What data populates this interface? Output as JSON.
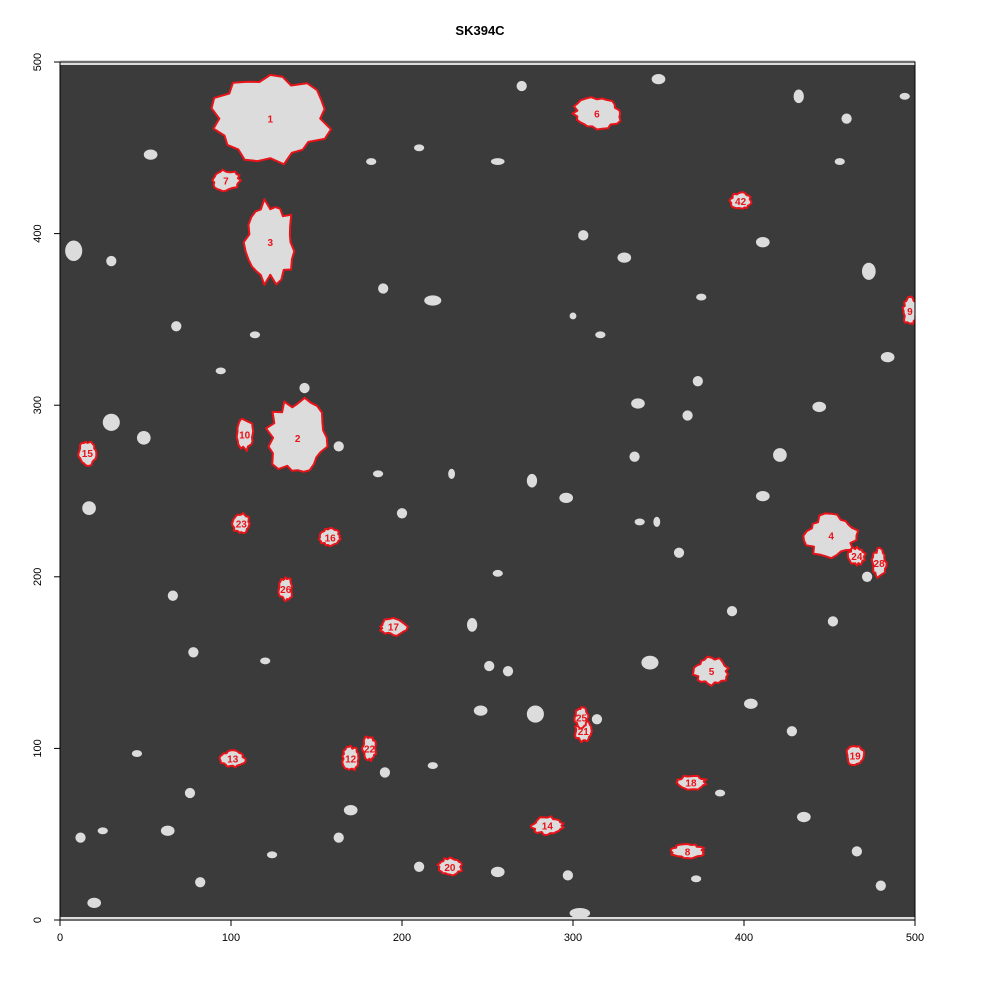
{
  "chart_data": {
    "type": "scatter",
    "title": "SK394C",
    "xlabel": "",
    "ylabel": "",
    "xlim": [
      0,
      500
    ],
    "ylim": [
      0,
      500
    ],
    "x_ticks": [
      0,
      100,
      200,
      300,
      400,
      500
    ],
    "y_ticks": [
      0,
      100,
      200,
      300,
      400,
      500
    ],
    "grid": false,
    "colors": {
      "background": "#3b3b3b",
      "particle": "#dcdcdc",
      "outline": "#e8141a",
      "label": "#e8141a",
      "frame": "#000000"
    },
    "labeled_regions": [
      {
        "label": "1",
        "x": 123,
        "y": 467,
        "rx": 34,
        "ry": 26
      },
      {
        "label": "2",
        "x": 139,
        "y": 281,
        "rx": 17,
        "ry": 22
      },
      {
        "label": "3",
        "x": 123,
        "y": 395,
        "rx": 14,
        "ry": 23
      },
      {
        "label": "4",
        "x": 451,
        "y": 224,
        "rx": 15,
        "ry": 12
      },
      {
        "label": "5",
        "x": 381,
        "y": 145,
        "rx": 10,
        "ry": 8
      },
      {
        "label": "6",
        "x": 314,
        "y": 470,
        "rx": 14,
        "ry": 9
      },
      {
        "label": "7",
        "x": 97,
        "y": 431,
        "rx": 8,
        "ry": 6
      },
      {
        "label": "8",
        "x": 367,
        "y": 40,
        "rx": 10,
        "ry": 4
      },
      {
        "label": "9",
        "x": 497,
        "y": 355,
        "rx": 4,
        "ry": 8
      },
      {
        "label": "10",
        "x": 108,
        "y": 283,
        "rx": 5,
        "ry": 9
      },
      {
        "label": "12",
        "x": 170,
        "y": 94,
        "rx": 5,
        "ry": 7
      },
      {
        "label": "13",
        "x": 101,
        "y": 94,
        "rx": 7,
        "ry": 5
      },
      {
        "label": "14",
        "x": 285,
        "y": 55,
        "rx": 9,
        "ry": 5
      },
      {
        "label": "15",
        "x": 16,
        "y": 272,
        "rx": 5,
        "ry": 7
      },
      {
        "label": "16",
        "x": 158,
        "y": 223,
        "rx": 6,
        "ry": 5
      },
      {
        "label": "17",
        "x": 195,
        "y": 171,
        "rx": 8,
        "ry": 5
      },
      {
        "label": "18",
        "x": 369,
        "y": 80,
        "rx": 9,
        "ry": 4
      },
      {
        "label": "19",
        "x": 465,
        "y": 96,
        "rx": 5,
        "ry": 6
      },
      {
        "label": "20",
        "x": 228,
        "y": 31,
        "rx": 7,
        "ry": 5
      },
      {
        "label": "21",
        "x": 306,
        "y": 110,
        "rx": 5,
        "ry": 6
      },
      {
        "label": "22",
        "x": 181,
        "y": 100,
        "rx": 4,
        "ry": 7
      },
      {
        "label": "23",
        "x": 106,
        "y": 231,
        "rx": 5,
        "ry": 6
      },
      {
        "label": "24",
        "x": 466,
        "y": 212,
        "rx": 5,
        "ry": 5
      },
      {
        "label": "25",
        "x": 305,
        "y": 118,
        "rx": 4,
        "ry": 6
      },
      {
        "label": "26",
        "x": 132,
        "y": 193,
        "rx": 4,
        "ry": 7
      },
      {
        "label": "28",
        "x": 479,
        "y": 208,
        "rx": 4,
        "ry": 8
      },
      {
        "label": "42",
        "x": 398,
        "y": 419,
        "rx": 6,
        "ry": 5
      }
    ],
    "unlabeled_particles": [
      [
        53,
        446,
        4,
        3
      ],
      [
        30,
        384,
        3,
        3
      ],
      [
        8,
        390,
        5,
        6
      ],
      [
        210,
        450,
        3,
        2
      ],
      [
        256,
        442,
        4,
        2
      ],
      [
        182,
        442,
        3,
        2
      ],
      [
        300,
        352,
        2,
        2
      ],
      [
        316,
        341,
        3,
        2
      ],
      [
        373,
        314,
        3,
        3
      ],
      [
        375,
        363,
        3,
        2
      ],
      [
        306,
        399,
        3,
        3
      ],
      [
        330,
        386,
        4,
        3
      ],
      [
        411,
        395,
        4,
        3
      ],
      [
        444,
        299,
        4,
        3
      ],
      [
        484,
        328,
        4,
        3
      ],
      [
        421,
        271,
        4,
        4
      ],
      [
        473,
        378,
        4,
        5
      ],
      [
        472,
        200,
        3,
        3
      ],
      [
        428,
        110,
        3,
        3
      ],
      [
        393,
        180,
        3,
        3
      ],
      [
        452,
        174,
        3,
        3
      ],
      [
        345,
        150,
        5,
        4
      ],
      [
        314,
        117,
        3,
        3
      ],
      [
        278,
        120,
        5,
        5
      ],
      [
        251,
        148,
        3,
        3
      ],
      [
        241,
        172,
        3,
        4
      ],
      [
        200,
        237,
        3,
        3
      ],
      [
        229,
        260,
        2,
        3
      ],
      [
        186,
        260,
        3,
        2
      ],
      [
        163,
        276,
        3,
        3
      ],
      [
        114,
        341,
        3,
        2
      ],
      [
        94,
        320,
        3,
        2
      ],
      [
        68,
        346,
        3,
        3
      ],
      [
        17,
        240,
        4,
        4
      ],
      [
        30,
        290,
        5,
        5
      ],
      [
        49,
        281,
        4,
        4
      ],
      [
        66,
        189,
        3,
        3
      ],
      [
        78,
        156,
        3,
        3
      ],
      [
        45,
        97,
        3,
        2
      ],
      [
        25,
        52,
        3,
        2
      ],
      [
        63,
        52,
        4,
        3
      ],
      [
        76,
        74,
        3,
        3
      ],
      [
        120,
        151,
        3,
        2
      ],
      [
        132,
        192,
        3,
        2
      ],
      [
        193,
        171,
        3,
        3
      ],
      [
        246,
        122,
        4,
        3
      ],
      [
        262,
        145,
        3,
        3
      ],
      [
        339,
        232,
        3,
        2
      ],
      [
        367,
        294,
        3,
        3
      ],
      [
        338,
        301,
        4,
        3
      ],
      [
        404,
        126,
        4,
        3
      ],
      [
        386,
        74,
        3,
        2
      ],
      [
        435,
        60,
        4,
        3
      ],
      [
        466,
        40,
        3,
        3
      ],
      [
        480,
        20,
        3,
        3
      ],
      [
        372,
        24,
        3,
        2
      ],
      [
        304,
        4,
        6,
        3
      ],
      [
        297,
        26,
        3,
        3
      ],
      [
        256,
        28,
        4,
        3
      ],
      [
        210,
        31,
        3,
        3
      ],
      [
        163,
        48,
        3,
        3
      ],
      [
        124,
        38,
        3,
        2
      ],
      [
        82,
        22,
        3,
        3
      ],
      [
        20,
        10,
        4,
        3
      ],
      [
        12,
        48,
        3,
        3
      ],
      [
        170,
        64,
        4,
        3
      ],
      [
        190,
        86,
        3,
        3
      ],
      [
        218,
        90,
        3,
        2
      ],
      [
        336,
        270,
        3,
        3
      ],
      [
        276,
        256,
        3,
        4
      ],
      [
        296,
        246,
        4,
        3
      ],
      [
        349,
        232,
        2,
        3
      ],
      [
        362,
        214,
        3,
        3
      ],
      [
        411,
        247,
        4,
        3
      ],
      [
        256,
        202,
        3,
        2
      ],
      [
        143,
        310,
        3,
        3
      ],
      [
        218,
        361,
        5,
        3
      ],
      [
        189,
        368,
        3,
        3
      ],
      [
        270,
        486,
        3,
        3
      ],
      [
        350,
        490,
        4,
        3
      ],
      [
        460,
        467,
        3,
        3
      ],
      [
        456,
        442,
        3,
        2
      ],
      [
        432,
        480,
        3,
        4
      ],
      [
        494,
        480,
        3,
        2
      ]
    ]
  }
}
